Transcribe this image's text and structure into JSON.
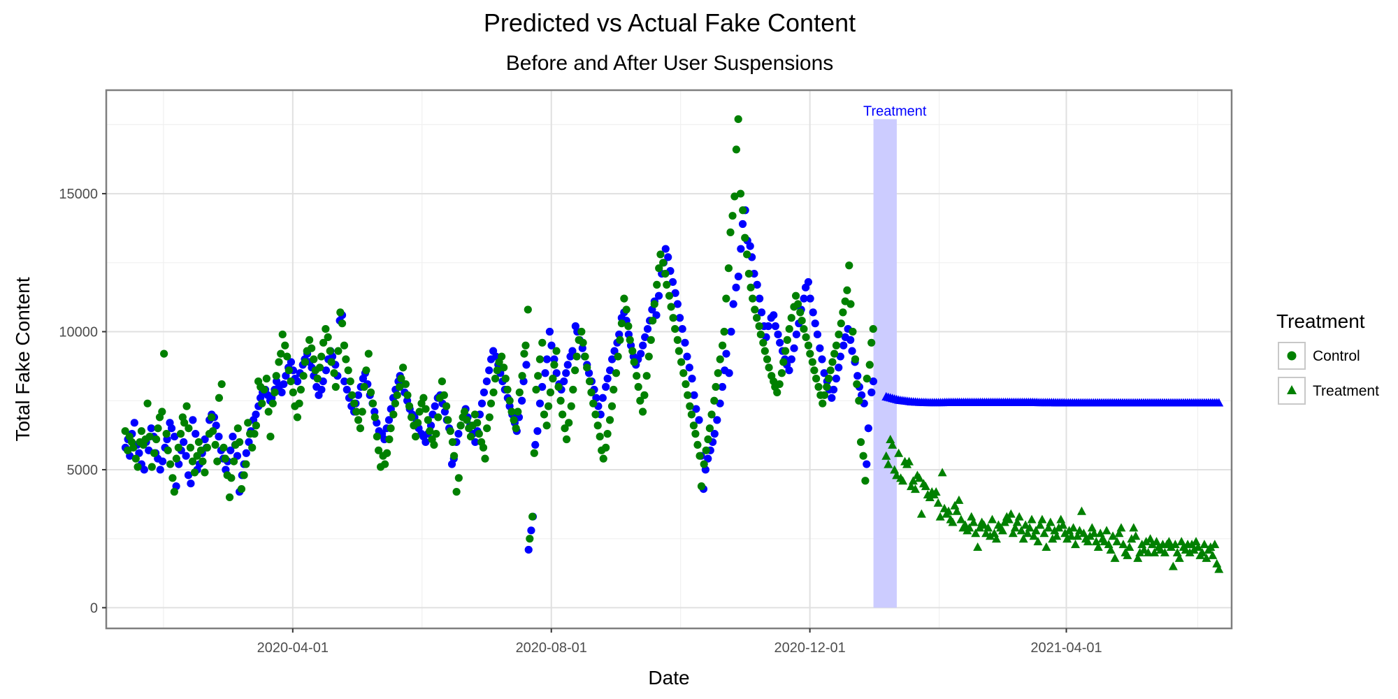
{
  "chart_data": {
    "type": "scatter",
    "title": "Predicted vs Actual Fake Content",
    "subtitle": "Before and After User Suspensions",
    "xlabel": "Date",
    "ylabel": "Total Fake Content",
    "x_range": [
      "2020-01-04",
      "2021-06-18"
    ],
    "ylim": [
      -750,
      18750
    ],
    "x_ticks": [
      "2020-04-01",
      "2020-08-01",
      "2020-12-01",
      "2021-04-01"
    ],
    "y_ticks": [
      0,
      5000,
      10000,
      15000
    ],
    "grid": true,
    "legend": {
      "title": "Treatment",
      "position": "right",
      "entries": [
        {
          "label": "Control",
          "shape": "circle",
          "color": "#008000"
        },
        {
          "label": "Treatment",
          "shape": "triangle",
          "color": "#008000"
        }
      ]
    },
    "annotation": {
      "text": "Treatment",
      "color": "#0000ff",
      "band_color": "#ccccff",
      "band_x_start": "2020-12-31",
      "band_x_end": "2021-01-11",
      "y_range": [
        0,
        17700
      ]
    },
    "series": [
      {
        "color": "#0000ff",
        "group": "Control",
        "shape": "circle",
        "x_start": "2020-01-13",
        "x_end": "2020-12-31",
        "values": [
          5800,
          6100,
          5500,
          6300,
          6700,
          5900,
          5600,
          5200,
          5000,
          6000,
          5700,
          6500,
          6200,
          5600,
          5400,
          5000,
          5300,
          5800,
          6100,
          6700,
          6500,
          6200,
          4400,
          5200,
          5700,
          6000,
          5500,
          4800,
          4500,
          6800,
          6300,
          5000,
          5200,
          5600,
          6100,
          5800,
          6800,
          7000,
          6900,
          6600,
          6200,
          5700,
          5400,
          5000,
          5300,
          5700,
          6200,
          5900,
          5500,
          4200,
          4800,
          5200,
          5600,
          6000,
          6400,
          6800,
          7000,
          7300,
          7600,
          7800,
          7900,
          7700,
          7500,
          7600,
          7900,
          8200,
          8000,
          7800,
          8100,
          8400,
          8700,
          8900,
          8600,
          8300,
          8200,
          8500,
          8800,
          9000,
          9200,
          8900,
          8700,
          8400,
          8000,
          7700,
          7900,
          8200,
          8600,
          9000,
          9300,
          9100,
          8800,
          8400,
          10400,
          10600,
          8200,
          7900,
          7600,
          7300,
          7100,
          7400,
          7700,
          8000,
          8300,
          8500,
          8100,
          7700,
          7400,
          7100,
          6700,
          6400,
          6300,
          6100,
          6500,
          6800,
          7200,
          7600,
          7900,
          8200,
          8400,
          8100,
          7800,
          7500,
          7200,
          7000,
          6900,
          6700,
          6500,
          6300,
          6200,
          6000,
          6300,
          6600,
          7000,
          7300,
          7600,
          7700,
          7400,
          7100,
          6800,
          6500,
          5200,
          5400,
          6000,
          6300,
          6600,
          6900,
          7200,
          6900,
          6600,
          6300,
          6000,
          6400,
          7000,
          7400,
          7800,
          8200,
          8600,
          9000,
          9300,
          9100,
          8800,
          8500,
          8200,
          7900,
          7600,
          7300,
          7000,
          6700,
          6400,
          6900,
          7500,
          8200,
          8800,
          2100,
          2800,
          3300,
          5900,
          6400,
          7400,
          8000,
          8500,
          9000,
          10000,
          9500,
          9000,
          8500,
          8100,
          7900,
          8200,
          8500,
          8800,
          9100,
          9300,
          10200,
          10000,
          9700,
          9400,
          9100,
          8800,
          8500,
          8200,
          7900,
          7600,
          7300,
          7000,
          7600,
          8000,
          8300,
          8600,
          9000,
          9300,
          9600,
          9900,
          10500,
          10700,
          10400,
          9900,
          9500,
          9100,
          8800,
          9000,
          9200,
          9500,
          9800,
          10100,
          10400,
          10800,
          11100,
          10600,
          11300,
          12100,
          12500,
          13000,
          12700,
          12200,
          11800,
          11400,
          11000,
          10500,
          10100,
          9600,
          9100,
          8700,
          8300,
          7700,
          7200,
          6800,
          5500,
          4300,
          5000,
          5400,
          5700,
          6000,
          6300,
          6800,
          7400,
          8000,
          8600,
          9200,
          8500,
          10000,
          11000,
          11600,
          12000,
          13000,
          13900,
          14400,
          13300,
          13100,
          12700,
          12100,
          11700,
          11200,
          10700,
          10200,
          9800,
          10200,
          10500,
          10600,
          10200,
          9900,
          9600,
          9300,
          9000,
          8800,
          8600,
          9000,
          9400,
          9900,
          10300,
          10800,
          11200,
          11600,
          11800,
          11200,
          10700,
          10300,
          9900,
          9400,
          9000,
          8500,
          8200,
          7900,
          7600,
          7900,
          8300,
          8700,
          9100,
          9500,
          9800,
          10100,
          9700,
          9300,
          8900,
          8400,
          8000,
          7700,
          7400,
          5200,
          6500,
          7800,
          8200
        ],
        "seed": 11
      },
      {
        "color": "#008000",
        "group": "Control",
        "shape": "circle",
        "x_start": "2020-01-13",
        "x_end": "2020-12-31",
        "values": [
          6400,
          5700,
          6200,
          6000,
          5800,
          5400,
          5100,
          6000,
          6400,
          5900,
          6100,
          7400,
          6200,
          5100,
          5600,
          6100,
          6500,
          6900,
          7100,
          9200,
          6300,
          5700,
          5200,
          4700,
          4200,
          5400,
          5800,
          6300,
          6900,
          6700,
          7300,
          6500,
          5800,
          5300,
          4900,
          5500,
          6000,
          5700,
          5300,
          4900,
          5800,
          6300,
          6900,
          6400,
          5900,
          5300,
          7600,
          8100,
          5800,
          5400,
          4800,
          4000,
          4700,
          5300,
          5900,
          6500,
          6000,
          4300,
          4800,
          5200,
          6700,
          6300,
          5800,
          6300,
          6600,
          8200,
          8000,
          7400,
          7900,
          8300,
          7100,
          6200,
          7400,
          7800,
          8400,
          8900,
          9200,
          9900,
          9500,
          9100,
          8600,
          8200,
          7800,
          7300,
          6900,
          7400,
          7900,
          8400,
          8900,
          9300,
          9700,
          9400,
          9000,
          8600,
          8300,
          8700,
          9100,
          9600,
          10100,
          9800,
          9300,
          8900,
          8500,
          8000,
          9300,
          10700,
          10300,
          9500,
          9000,
          8600,
          8200,
          7700,
          7400,
          7100,
          6800,
          6500,
          7100,
          8000,
          8600,
          9200,
          7800,
          7400,
          6900,
          6200,
          5700,
          5100,
          5500,
          5200,
          5600,
          6100,
          6500,
          7000,
          7400,
          7700,
          8000,
          8300,
          8700,
          8100,
          7700,
          7300,
          6900,
          6600,
          6200,
          6700,
          7100,
          7400,
          7600,
          7200,
          6800,
          6400,
          6100,
          5900,
          6300,
          6900,
          7600,
          8200,
          7700,
          7300,
          6800,
          6400,
          6000,
          5500,
          4200,
          4700,
          6600,
          6900,
          7100,
          6800,
          6500,
          6200,
          6600,
          7000,
          6700,
          6300,
          6000,
          5800,
          5400,
          6500,
          6900,
          7400,
          7800,
          8300,
          8600,
          8900,
          9100,
          8700,
          8300,
          7900,
          7500,
          7100,
          6800,
          6500,
          7100,
          7800,
          8400,
          9200,
          9500,
          10800,
          2500,
          3300,
          5600,
          7900,
          8400,
          9000,
          9600,
          7000,
          6600,
          7300,
          7800,
          8300,
          8800,
          9300,
          8000,
          7500,
          7000,
          6500,
          6100,
          6700,
          7300,
          7900,
          8600,
          9100,
          9700,
          10000,
          9600,
          9100,
          8700,
          8200,
          7800,
          7400,
          7000,
          6600,
          6200,
          5700,
          5400,
          5800,
          6300,
          6800,
          7300,
          7900,
          8500,
          9100,
          9700,
          10300,
          11200,
          10800,
          10200,
          9700,
          9300,
          8900,
          8400,
          8000,
          7500,
          7100,
          7700,
          8400,
          9100,
          9700,
          10400,
          11000,
          11700,
          12300,
          12800,
          12500,
          12100,
          11700,
          11300,
          10900,
          10500,
          10100,
          9700,
          9300,
          8900,
          8500,
          8100,
          7700,
          7300,
          7000,
          6600,
          6300,
          5900,
          5500,
          4400,
          5200,
          5700,
          6100,
          6500,
          7000,
          7500,
          8000,
          8500,
          9000,
          9500,
          10000,
          11200,
          12300,
          13600,
          14200,
          14900,
          16600,
          17700,
          15000,
          14400,
          13400,
          12800,
          12100,
          11600,
          11200,
          10800,
          10500,
          10200,
          9900,
          9600,
          9300,
          9000,
          8700,
          8400,
          8200,
          8000,
          7800,
          8100,
          8500,
          8900,
          9300,
          9700,
          10100,
          10500,
          10900,
          11300,
          11000,
          10700,
          10400,
          10100,
          9800,
          9500,
          9200,
          8900,
          8600,
          8300,
          8000,
          7700,
          7400,
          7700,
          8000,
          8300,
          8600,
          8900,
          9200,
          9500,
          9900,
          10300,
          10700,
          11100,
          11500,
          12400,
          11000,
          10000,
          9000,
          8100,
          7500,
          6000,
          5500,
          4600,
          8300,
          8800,
          9600,
          10100
        ],
        "seed": 29
      },
      {
        "color": "#0000ff",
        "group": "Treatment",
        "shape": "triangle",
        "x_start": "2021-01-06",
        "x_end": "2021-06-12",
        "values": [
          7650,
          7630,
          7610,
          7590,
          7570,
          7550,
          7530,
          7520,
          7510,
          7500,
          7490,
          7480,
          7470,
          7465,
          7460,
          7455,
          7450,
          7450,
          7445,
          7445,
          7440,
          7440,
          7440,
          7440,
          7440,
          7440,
          7440,
          7440,
          7445,
          7445,
          7450,
          7450,
          7450,
          7450,
          7450,
          7450,
          7450,
          7450,
          7450,
          7450,
          7450,
          7450,
          7450,
          7450,
          7450,
          7450,
          7450,
          7450,
          7450,
          7450,
          7450,
          7450,
          7450,
          7450,
          7450,
          7450,
          7450,
          7450,
          7450,
          7450,
          7450,
          7450,
          7450,
          7450,
          7450,
          7450,
          7450,
          7450,
          7450,
          7450,
          7450,
          7445,
          7445,
          7440,
          7440,
          7440,
          7440,
          7440,
          7440,
          7440,
          7440,
          7435,
          7435,
          7435,
          7435,
          7435,
          7430,
          7430,
          7430,
          7430,
          7430,
          7430,
          7430,
          7430,
          7430,
          7430,
          7430,
          7430,
          7430,
          7430,
          7430,
          7430,
          7430,
          7430,
          7430,
          7430,
          7430,
          7430,
          7430,
          7430,
          7430,
          7430,
          7430,
          7430,
          7430,
          7430,
          7430,
          7430,
          7430,
          7430,
          7430,
          7430,
          7430,
          7430,
          7430,
          7430,
          7430,
          7430,
          7430,
          7430,
          7430,
          7430,
          7430,
          7430,
          7430,
          7430,
          7430,
          7430,
          7430,
          7430,
          7430,
          7430,
          7430,
          7430,
          7430,
          7430,
          7430,
          7430,
          7430,
          7430,
          7430,
          7430,
          7430,
          7430,
          7430,
          7430,
          7430,
          7430,
          7430,
          7430
        ]
      },
      {
        "color": "#008000",
        "group": "Treatment",
        "shape": "triangle",
        "x_start": "2021-01-06",
        "x_end": "2021-06-12",
        "values": [
          5500,
          5200,
          6100,
          5900,
          5000,
          4800,
          5600,
          4700,
          4600,
          5300,
          5200,
          5300,
          4400,
          4600,
          4300,
          4800,
          4700,
          3400,
          4500,
          4400,
          4100,
          4000,
          4200,
          4100,
          4200,
          3800,
          3300,
          4900,
          3600,
          3400,
          3500,
          3200,
          3100,
          3700,
          3500,
          3900,
          3200,
          2900,
          3000,
          2800,
          2900,
          3300,
          3100,
          2700,
          2200,
          2900,
          3100,
          3000,
          2700,
          2900,
          2600,
          3200,
          2700,
          2500,
          3000,
          2900,
          2800,
          3100,
          3300,
          3200,
          3400,
          2700,
          2900,
          3100,
          3300,
          2800,
          2500,
          3000,
          2700,
          2900,
          3200,
          2600,
          2800,
          2400,
          3000,
          3200,
          2700,
          2200,
          2900,
          3100,
          2500,
          2800,
          2600,
          2900,
          3200,
          3000,
          2700,
          2500,
          2800,
          2600,
          2900,
          2300,
          2600,
          2800,
          3500,
          2700,
          2500,
          2400,
          2600,
          2900,
          2700,
          2400,
          2200,
          2700,
          2500,
          2400,
          2800,
          2300,
          2100,
          2600,
          1800,
          2400,
          2700,
          2900,
          2300,
          2000,
          1900,
          2200,
          2500,
          2900,
          2600,
          1800,
          2000,
          2300,
          2100,
          2400,
          2000,
          2500,
          2300,
          2000,
          2400,
          2200,
          2100,
          2300,
          2000,
          2300,
          2400,
          2200,
          1500,
          2300,
          2000,
          1800,
          2400,
          2200,
          2100,
          2300,
          2000,
          2300,
          2100,
          2400,
          2200,
          1900,
          2000,
          2300,
          1800,
          2100,
          2200,
          1900,
          2300,
          1600,
          1400
        ]
      }
    ]
  }
}
